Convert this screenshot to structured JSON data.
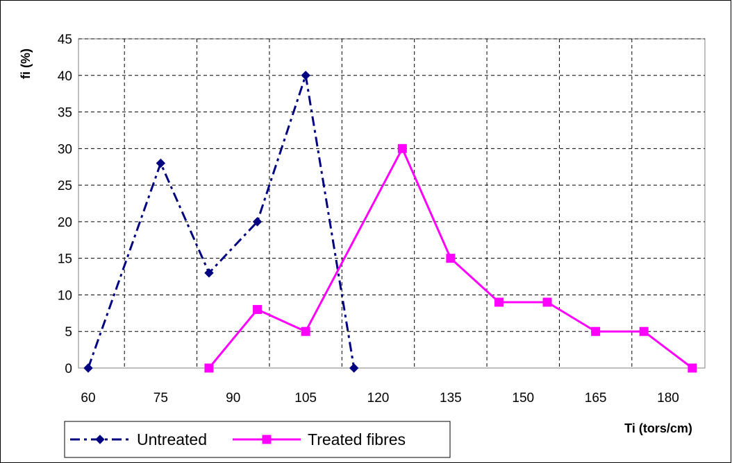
{
  "chart_data": {
    "type": "line",
    "xlabel": "Ti (tors/cm)",
    "ylabel": "fi (%)",
    "xlim": [
      60,
      180
    ],
    "ylim": [
      0,
      45
    ],
    "x_ticks": [
      60,
      75,
      90,
      105,
      120,
      135,
      150,
      165,
      180
    ],
    "y_ticks": [
      0,
      5,
      10,
      15,
      20,
      25,
      30,
      35,
      40,
      45
    ],
    "grid": true,
    "legend_position": "bottom-left",
    "series": [
      {
        "name": "Untreated",
        "color": "#000080",
        "line_style": "dash-dot",
        "marker": "diamond",
        "x": [
          60,
          75,
          85,
          95,
          105,
          115
        ],
        "y": [
          0,
          28,
          13,
          20,
          40,
          0
        ]
      },
      {
        "name": "Treated fibres",
        "color": "#FF00FF",
        "line_style": "solid",
        "marker": "square",
        "x": [
          85,
          95,
          105,
          125,
          135,
          145,
          155,
          165,
          175,
          185
        ],
        "y": [
          0,
          8,
          5,
          30,
          15,
          9,
          9,
          5,
          5,
          0
        ]
      }
    ]
  }
}
